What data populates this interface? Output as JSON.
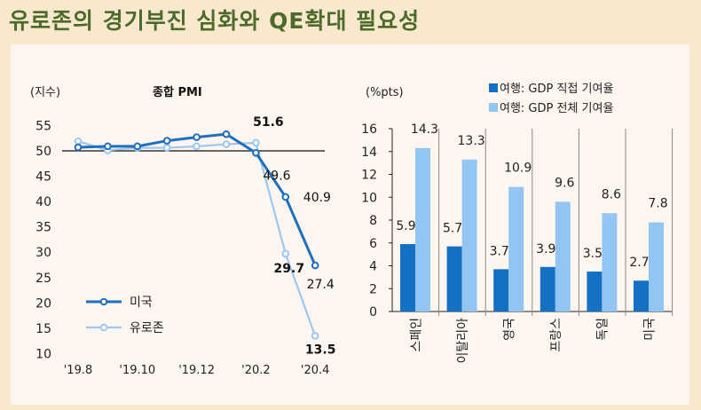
{
  "title": "유로존의 경기부진 심화와 QE확대 필요성",
  "chart_data": [
    {
      "type": "line",
      "title": "종합 PMI",
      "ylabel": "(지수)",
      "ylim": [
        10,
        55
      ],
      "yticks": [
        10,
        15,
        20,
        25,
        30,
        35,
        40,
        45,
        50,
        55
      ],
      "x": [
        "'19.8",
        "'19.9",
        "'19.10",
        "'19.11",
        "'19.12",
        "'20.1",
        "'20.2",
        "'20.3",
        "'20.4"
      ],
      "xtick_labels": [
        "'19.8",
        "'19.10",
        "'19.12",
        "'20.2",
        "'20.4"
      ],
      "reference_line": 50,
      "legend_placement": "bottom-left",
      "series": [
        {
          "name": "미국",
          "color": "#1f6fc0",
          "values": [
            50.7,
            50.9,
            50.9,
            52.0,
            52.7,
            53.3,
            49.6,
            40.9,
            27.4
          ],
          "labels": {
            "6": "49.6",
            "7": "40.9",
            "8": "27.4"
          }
        },
        {
          "name": "유로존",
          "color": "#9cc7f0",
          "values": [
            51.9,
            50.1,
            50.6,
            50.6,
            50.9,
            51.3,
            51.6,
            29.7,
            13.5
          ],
          "labels": {
            "6": "51.6",
            "7": "29.7",
            "8": "13.5"
          }
        }
      ]
    },
    {
      "type": "bar",
      "ylabel": "(%pts)",
      "ylim": [
        0,
        16
      ],
      "yticks": [
        0,
        2,
        4,
        6,
        8,
        10,
        12,
        14,
        16
      ],
      "categories": [
        "스페인",
        "이탈리아",
        "영국",
        "프랑스",
        "독일",
        "미국"
      ],
      "legend_placement": "top",
      "series": [
        {
          "name": "여행: GDP 직접 기여율",
          "color": "#1470c4",
          "values": [
            5.9,
            5.7,
            3.7,
            3.9,
            3.5,
            2.7
          ]
        },
        {
          "name": "여행: GDP 전체 기여율",
          "color": "#92c5f2",
          "values": [
            14.3,
            13.3,
            10.9,
            9.6,
            8.6,
            7.8
          ]
        }
      ]
    }
  ]
}
